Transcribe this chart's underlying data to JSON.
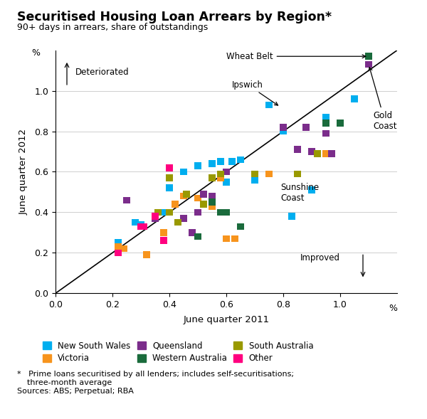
{
  "title": "Securitised Housing Loan Arrears by Region*",
  "subtitle": "90+ days in arrears, share of outstandings",
  "xlabel": "June quarter 2011",
  "ylabel": "June quarter 2012",
  "xlim": [
    0.0,
    1.2
  ],
  "ylim": [
    0.0,
    1.2
  ],
  "xticks": [
    0.0,
    0.2,
    0.4,
    0.6,
    0.8,
    1.0
  ],
  "yticks": [
    0.0,
    0.2,
    0.4,
    0.6,
    0.8,
    1.0
  ],
  "footnote1": "*   Prime loans securitised by all lenders; includes self-securitisations;",
  "footnote2": "    three-month average",
  "footnote3": "Sources: ABS; Perpetual; RBA",
  "series": {
    "NSW": {
      "color": "#00AEEF",
      "label": "New South Wales",
      "points": [
        [
          0.22,
          0.25
        ],
        [
          0.28,
          0.35
        ],
        [
          0.3,
          0.34
        ],
        [
          0.38,
          0.4
        ],
        [
          0.4,
          0.52
        ],
        [
          0.45,
          0.6
        ],
        [
          0.5,
          0.63
        ],
        [
          0.55,
          0.64
        ],
        [
          0.58,
          0.65
        ],
        [
          0.6,
          0.55
        ],
        [
          0.62,
          0.65
        ],
        [
          0.65,
          0.66
        ],
        [
          0.7,
          0.56
        ],
        [
          0.75,
          0.93
        ],
        [
          0.8,
          0.8
        ],
        [
          0.83,
          0.38
        ],
        [
          0.9,
          0.51
        ],
        [
          0.95,
          0.87
        ],
        [
          1.05,
          0.96
        ]
      ]
    },
    "VIC": {
      "color": "#F7941D",
      "label": "Victoria",
      "points": [
        [
          0.22,
          0.23
        ],
        [
          0.24,
          0.22
        ],
        [
          0.32,
          0.19
        ],
        [
          0.38,
          0.3
        ],
        [
          0.42,
          0.44
        ],
        [
          0.45,
          0.48
        ],
        [
          0.5,
          0.47
        ],
        [
          0.52,
          0.44
        ],
        [
          0.55,
          0.43
        ],
        [
          0.58,
          0.57
        ],
        [
          0.6,
          0.27
        ],
        [
          0.63,
          0.27
        ],
        [
          0.75,
          0.59
        ],
        [
          0.85,
          0.59
        ],
        [
          0.95,
          0.69
        ]
      ]
    },
    "QLD": {
      "color": "#7B2D8B",
      "label": "Queensland",
      "points": [
        [
          0.25,
          0.46
        ],
        [
          0.35,
          0.37
        ],
        [
          0.4,
          0.4
        ],
        [
          0.45,
          0.37
        ],
        [
          0.48,
          0.3
        ],
        [
          0.5,
          0.4
        ],
        [
          0.52,
          0.49
        ],
        [
          0.55,
          0.48
        ],
        [
          0.6,
          0.6
        ],
        [
          0.8,
          0.82
        ],
        [
          0.85,
          0.71
        ],
        [
          0.88,
          0.82
        ],
        [
          0.9,
          0.7
        ],
        [
          0.95,
          0.79
        ],
        [
          0.97,
          0.69
        ],
        [
          1.1,
          1.13
        ]
      ]
    },
    "WA": {
      "color": "#1A6B3C",
      "label": "Western Australia",
      "points": [
        [
          0.5,
          0.28
        ],
        [
          0.55,
          0.45
        ],
        [
          0.58,
          0.4
        ],
        [
          0.6,
          0.4
        ],
        [
          0.65,
          0.33
        ],
        [
          0.95,
          0.84
        ],
        [
          1.0,
          0.84
        ],
        [
          1.1,
          1.17
        ]
      ]
    },
    "SA": {
      "color": "#999900",
      "label": "South Australia",
      "points": [
        [
          0.36,
          0.4
        ],
        [
          0.4,
          0.4
        ],
        [
          0.4,
          0.57
        ],
        [
          0.43,
          0.35
        ],
        [
          0.46,
          0.49
        ],
        [
          0.52,
          0.44
        ],
        [
          0.55,
          0.57
        ],
        [
          0.58,
          0.59
        ],
        [
          0.7,
          0.59
        ],
        [
          0.85,
          0.59
        ],
        [
          0.92,
          0.69
        ]
      ]
    },
    "Other": {
      "color": "#FF007F",
      "label": "Other",
      "points": [
        [
          0.22,
          0.2
        ],
        [
          0.3,
          0.33
        ],
        [
          0.31,
          0.33
        ],
        [
          0.35,
          0.38
        ],
        [
          0.38,
          0.26
        ],
        [
          0.4,
          0.62
        ]
      ]
    }
  }
}
